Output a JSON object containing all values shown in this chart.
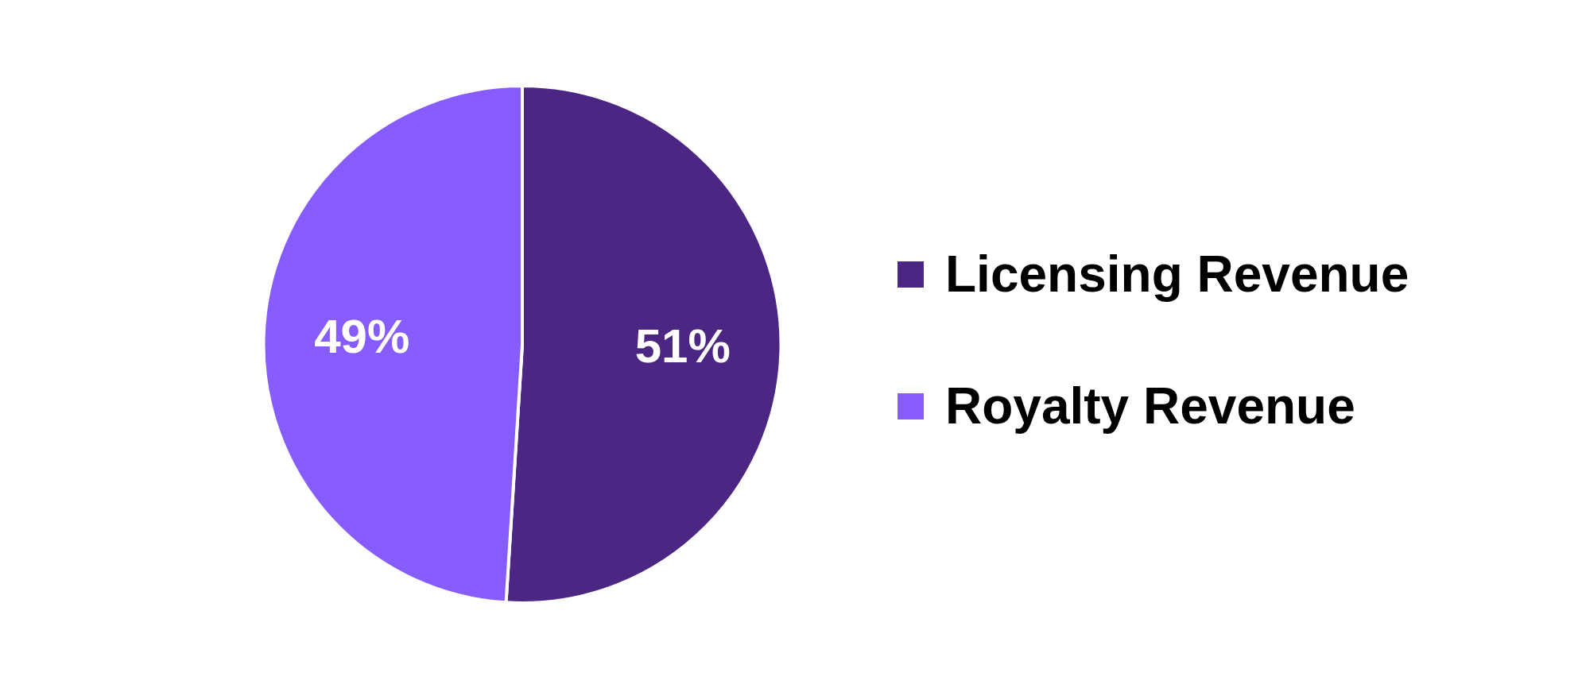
{
  "chart_data": {
    "type": "pie",
    "categories": [
      "Licensing Revenue",
      "Royalty Revenue"
    ],
    "values": [
      51,
      49
    ],
    "colors": [
      "#4b2683",
      "#875cfc"
    ],
    "value_labels": [
      "51%",
      "49%"
    ],
    "legend": "right"
  }
}
